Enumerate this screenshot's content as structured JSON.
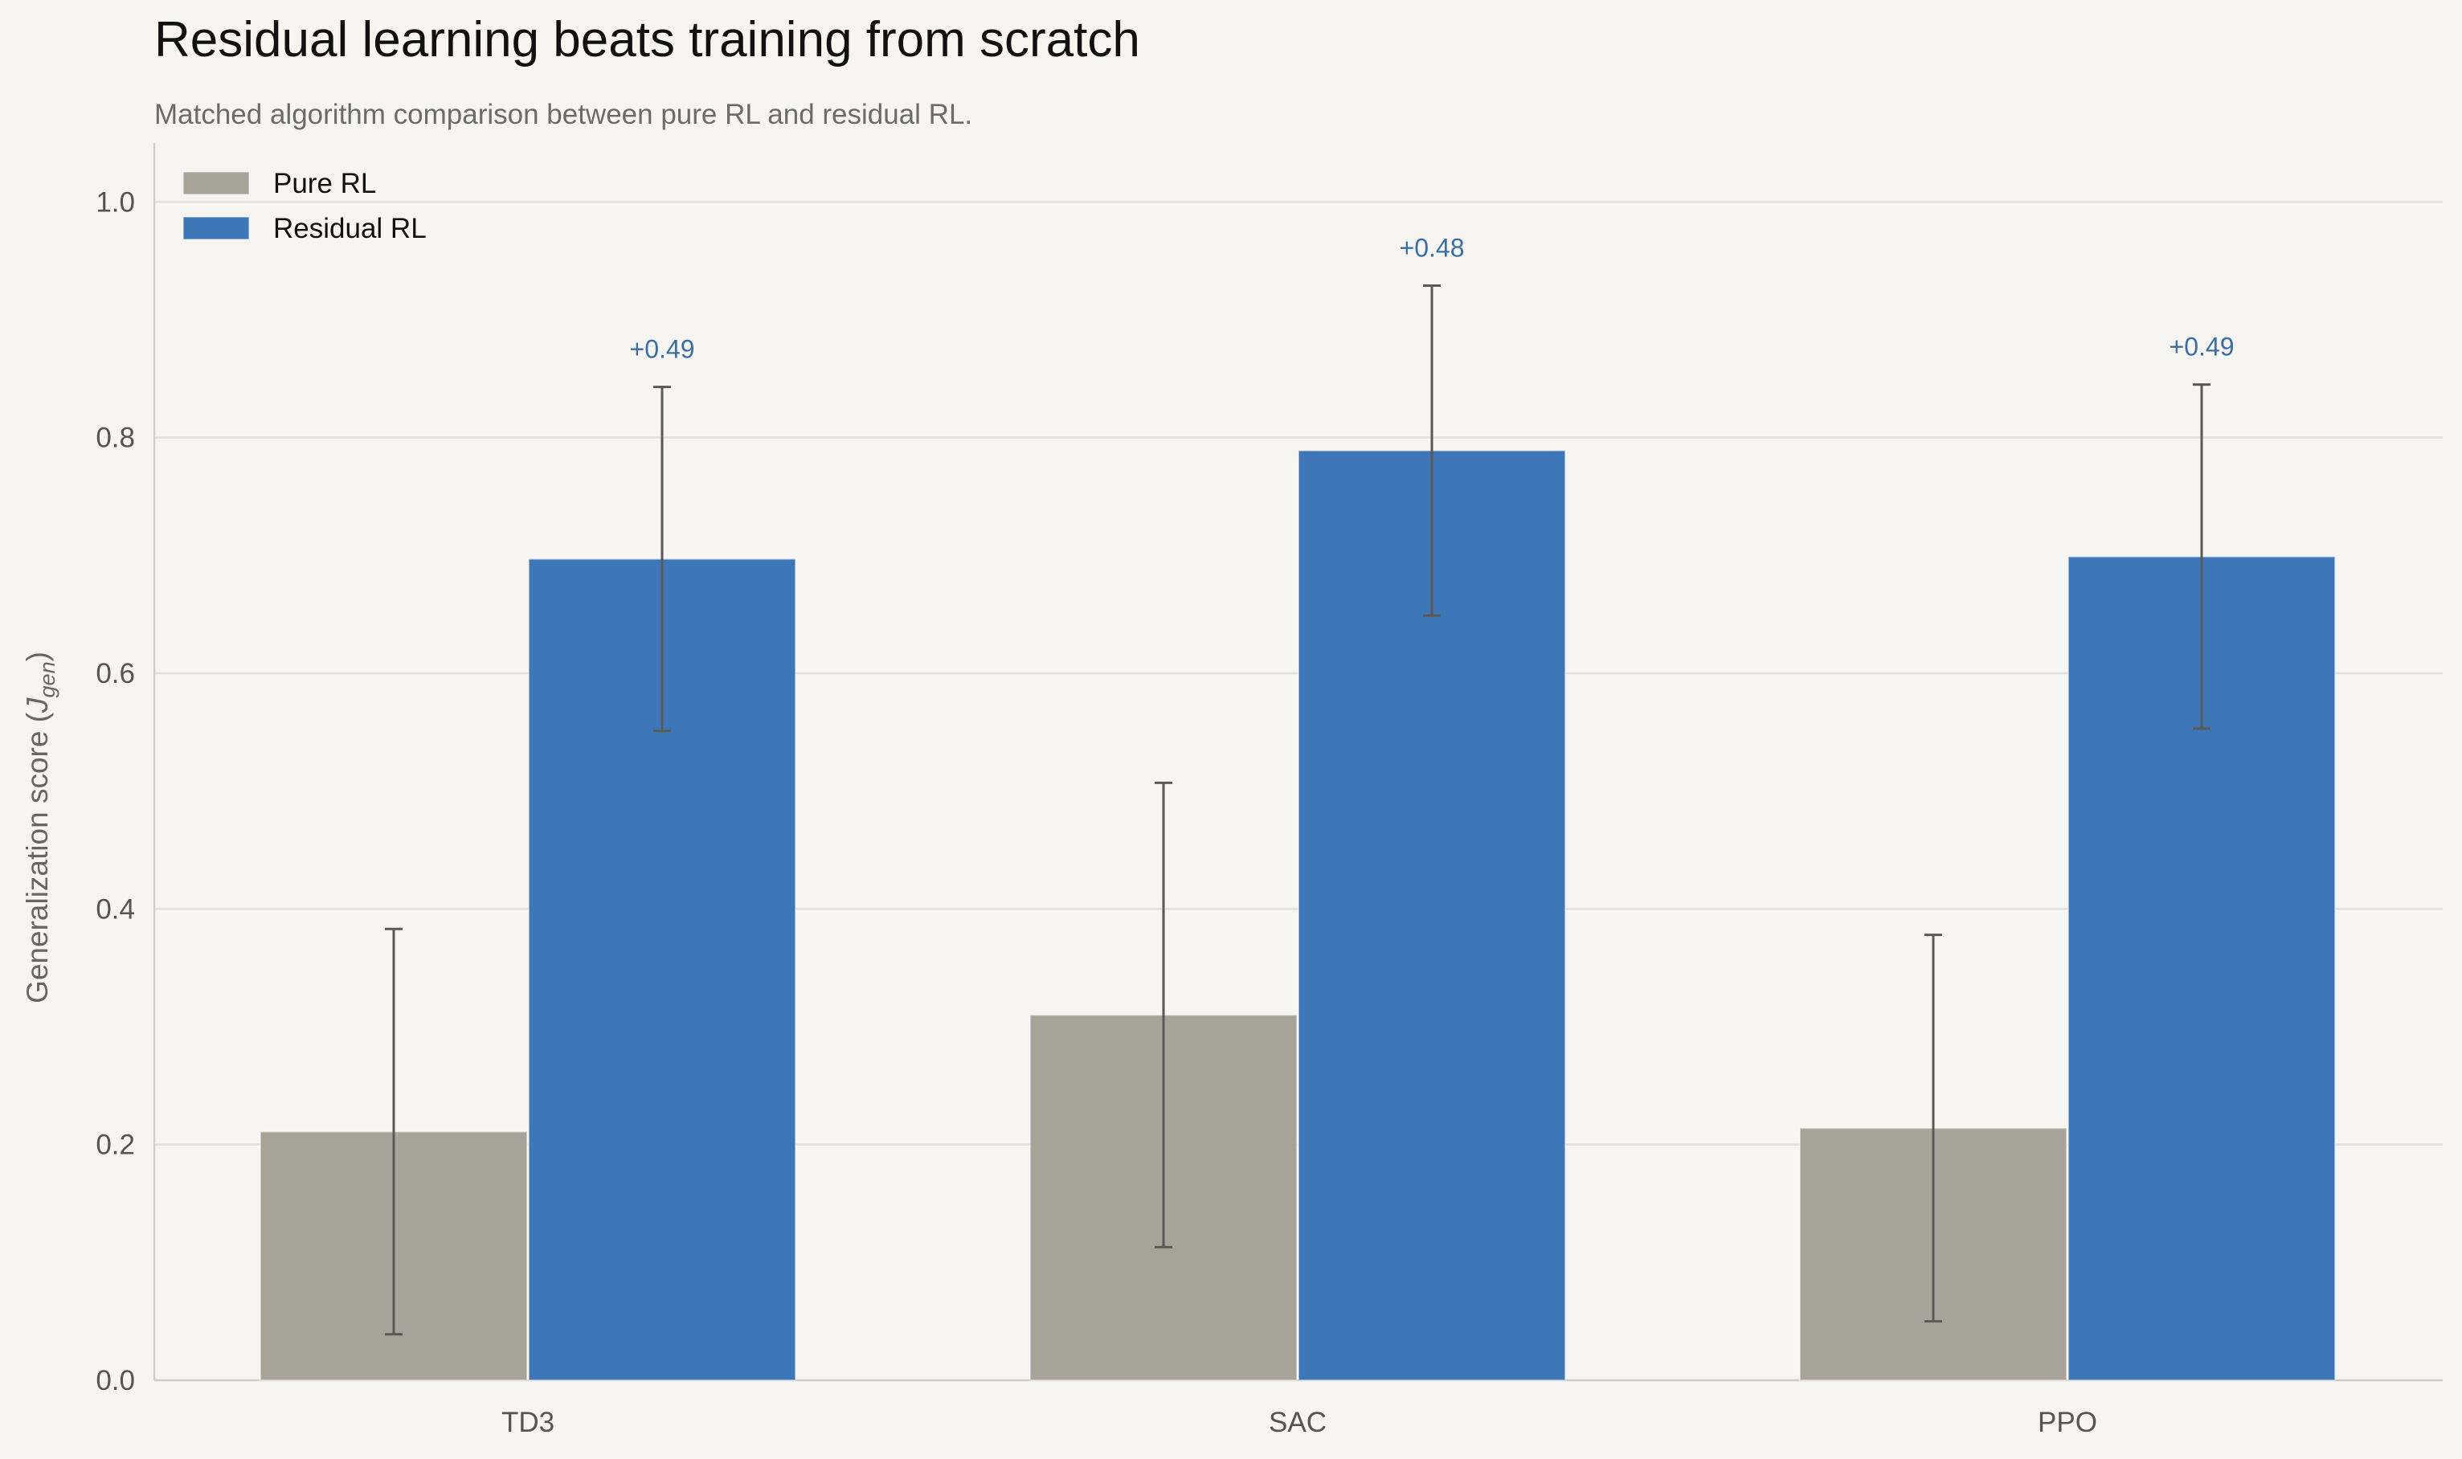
{
  "chart_data": {
    "type": "bar",
    "title": "Residual learning beats training from scratch",
    "subtitle": "Matched algorithm comparison between pure RL and residual RL.",
    "xlabel": "",
    "ylabel": "Generalization score",
    "ylabel_symbol": "J",
    "ylabel_subscript": "gen",
    "ylim": [
      0,
      1.05
    ],
    "yticks": [
      0.0,
      0.2,
      0.4,
      0.6,
      0.8,
      1.0
    ],
    "ytick_labels": [
      "0.0",
      "0.2",
      "0.4",
      "0.6",
      "0.8",
      "1.0"
    ],
    "grid": "y",
    "legend_position": "top-left",
    "categories": [
      "TD3",
      "SAC",
      "PPO"
    ],
    "series": [
      {
        "name": "Pure RL",
        "color": "#a8a398",
        "values": [
          0.211,
          0.31,
          0.214
        ],
        "error": [
          0.172,
          0.197,
          0.164
        ]
      },
      {
        "name": "Residual RL",
        "color": "#3e77b8",
        "values": [
          0.697,
          0.789,
          0.699
        ],
        "error": [
          0.146,
          0.14,
          0.146
        ]
      }
    ],
    "delta_labels": [
      "+0.49",
      "+0.48",
      "+0.49"
    ],
    "delta_color": "#3a6ea5"
  }
}
